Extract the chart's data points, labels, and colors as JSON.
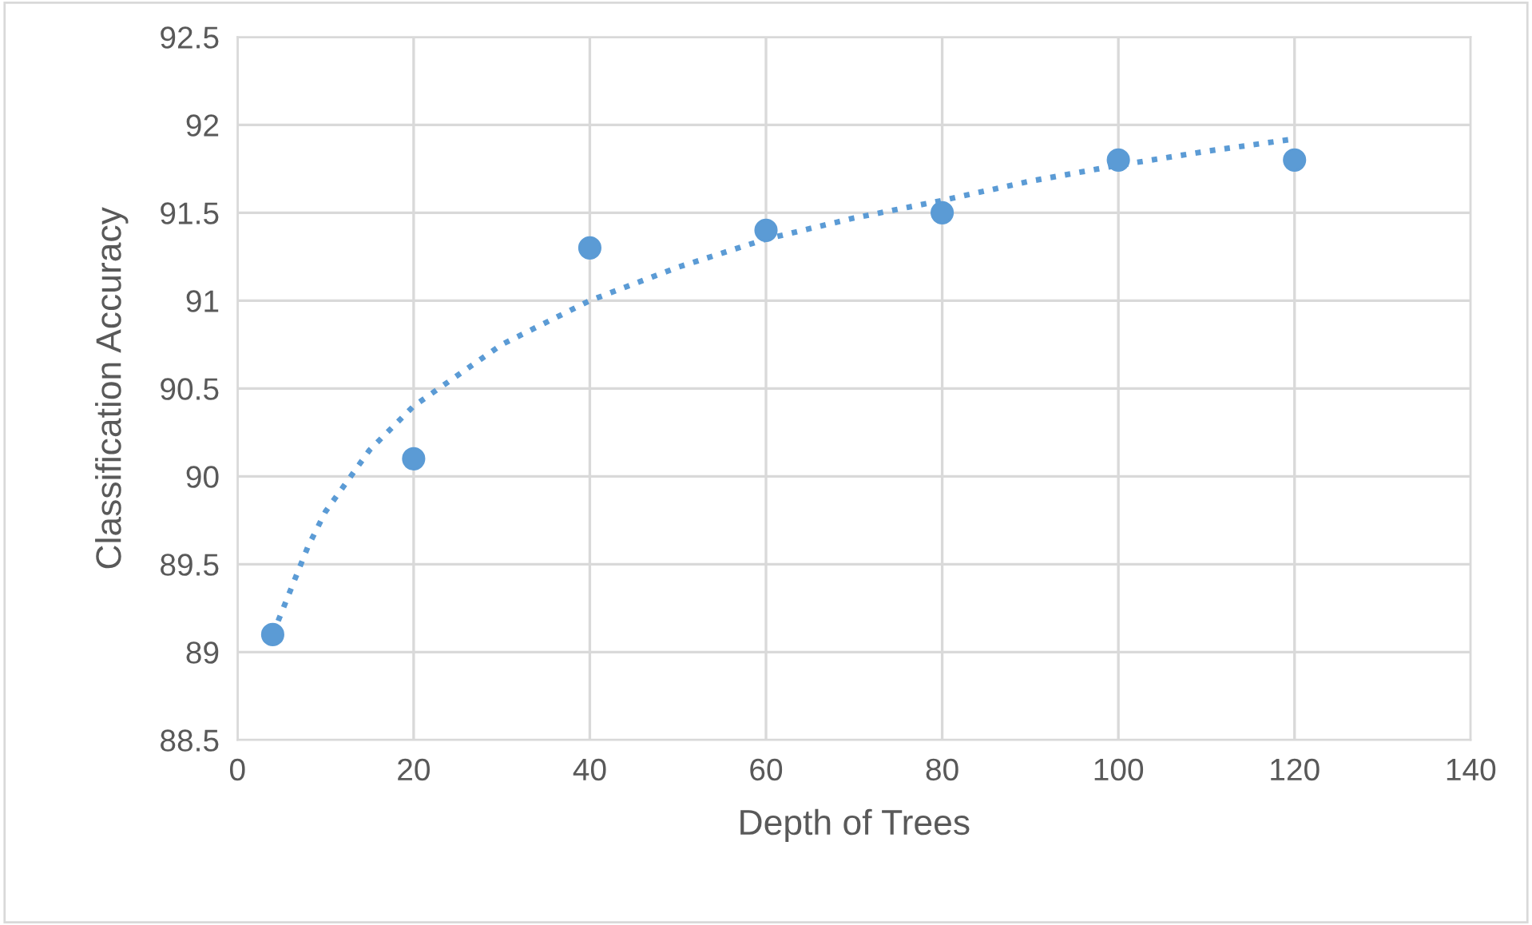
{
  "chart_data": {
    "type": "scatter",
    "xlabel": "Depth of Trees",
    "ylabel": "Classification Accuracy",
    "series": [
      {
        "color": "#5b9bd5",
        "marker": "circle",
        "x": [
          4,
          20,
          40,
          60,
          80,
          100,
          120
        ],
        "values": [
          89.1,
          90.1,
          91.3,
          91.4,
          91.5,
          91.8,
          91.8
        ]
      },
      {
        "type": "line",
        "color": "#5b9bd5",
        "line_style": "dotted",
        "marker": "none",
        "x": [
          4,
          6,
          8,
          10,
          15,
          20,
          30,
          40,
          50,
          60,
          70,
          80,
          90,
          100,
          110,
          120
        ],
        "values": [
          89.1,
          89.35,
          89.6,
          89.8,
          90.15,
          90.4,
          90.75,
          91.0,
          91.19,
          91.35,
          91.47,
          91.57,
          91.68,
          91.77,
          91.85,
          91.92
        ]
      }
    ],
    "xlim": [
      0,
      140
    ],
    "xticks": [
      0,
      20,
      40,
      60,
      80,
      100,
      120,
      140
    ],
    "ylim": [
      88.5,
      92.5
    ],
    "yticks": [
      88.5,
      89,
      89.5,
      90,
      90.5,
      91,
      91.5,
      92,
      92.5
    ],
    "grid": true,
    "legend": false
  }
}
